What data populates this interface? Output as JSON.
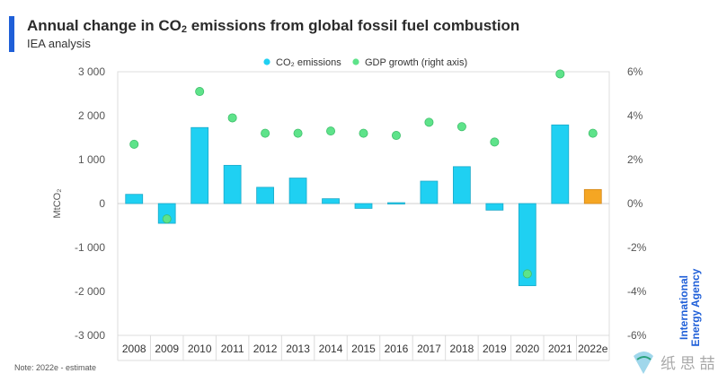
{
  "header": {
    "title_prefix": "Annual change in CO",
    "title_sub": "2",
    "title_suffix": " emissions from global fossil fuel combustion",
    "subtitle": "IEA analysis"
  },
  "note": "Note: 2022e - estimate",
  "logo_text": "International Energy Agency",
  "watermark_text": "纸 思 喆",
  "colors": {
    "co2": "#1fd0f2",
    "estimate": "#f5a623",
    "gdp": "#5ee38a",
    "accent": "#1f5fd8",
    "logo": "#1f5fd8"
  },
  "chart_data": {
    "type": "bar",
    "categories": [
      "2008",
      "2009",
      "2010",
      "2011",
      "2012",
      "2013",
      "2014",
      "2015",
      "2016",
      "2017",
      "2018",
      "2019",
      "2020",
      "2021",
      "2022e"
    ],
    "series": [
      {
        "name": "CO₂ emissions",
        "axis": "left",
        "type": "bar",
        "values": [
          210,
          -450,
          1730,
          870,
          370,
          580,
          110,
          -110,
          20,
          510,
          840,
          -150,
          -1870,
          1790,
          320
        ],
        "estimate_index": 14
      },
      {
        "name": "GDP growth (right axis)",
        "axis": "right",
        "type": "scatter",
        "values": [
          2.7,
          -0.7,
          5.1,
          3.9,
          3.2,
          3.2,
          3.3,
          3.2,
          3.1,
          3.7,
          3.5,
          2.8,
          -3.2,
          5.9,
          3.2
        ]
      }
    ],
    "ylabel": "MtCO₂",
    "ylim": [
      -3000,
      3000
    ],
    "yticks": [
      "3 000",
      "2 000",
      "1 000",
      "0",
      "-1 000",
      "-2 000",
      "-3 000"
    ],
    "ylim_right": [
      -6,
      6
    ],
    "yticks_right": [
      "6%",
      "4%",
      "2%",
      "0%",
      "-2%",
      "-4%",
      "-6%"
    ],
    "legend_position": "top-center",
    "grid": false
  }
}
